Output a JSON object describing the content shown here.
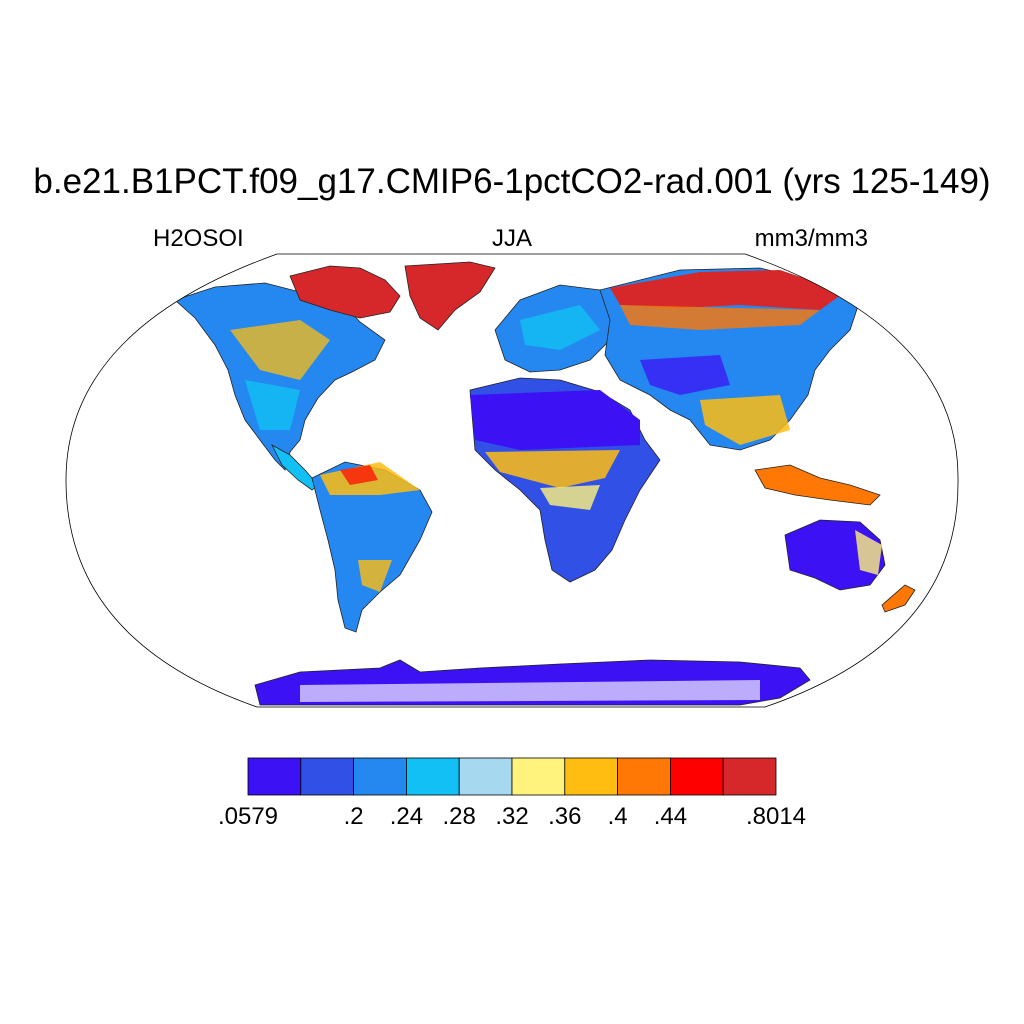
{
  "title": "b.e21.B1PCT.f09_g17.CMIP6-1pctCO2-rad.001 (yrs 125-149)",
  "subtitle": {
    "left": "H2OSOI",
    "center": "JJA",
    "right": "mm3/mm3"
  },
  "colorbar": {
    "colors": [
      "#3c12f5",
      "#3050e6",
      "#2588f0",
      "#12c0f5",
      "#a6d8f0",
      "#fff37d",
      "#ffbd12",
      "#ff7805",
      "#ff0000",
      "#d6282a"
    ],
    "labels": [
      {
        "text": ".0579",
        "boundary": 0
      },
      {
        "text": ".2",
        "boundary": 2
      },
      {
        "text": ".24",
        "boundary": 3
      },
      {
        "text": ".28",
        "boundary": 4
      },
      {
        "text": ".32",
        "boundary": 5
      },
      {
        "text": ".36",
        "boundary": 6
      },
      {
        "text": ".4",
        "boundary": 7
      },
      {
        "text": ".44",
        "boundary": 8
      },
      {
        "text": ".8014",
        "boundary": 10
      }
    ]
  },
  "map": {
    "projection": "robinson",
    "variable": "H2OSOI",
    "season": "JJA",
    "regions": [
      {
        "name": "greenland",
        "color": "#d6282a"
      },
      {
        "name": "siberia",
        "color": "#d6282a"
      },
      {
        "name": "sahara",
        "color": "#3c12f5"
      },
      {
        "name": "australia",
        "color": "#3c12f5"
      },
      {
        "name": "amazon",
        "color": "#ffbd12"
      },
      {
        "name": "antarctica",
        "color": "#3c12f5"
      }
    ]
  }
}
